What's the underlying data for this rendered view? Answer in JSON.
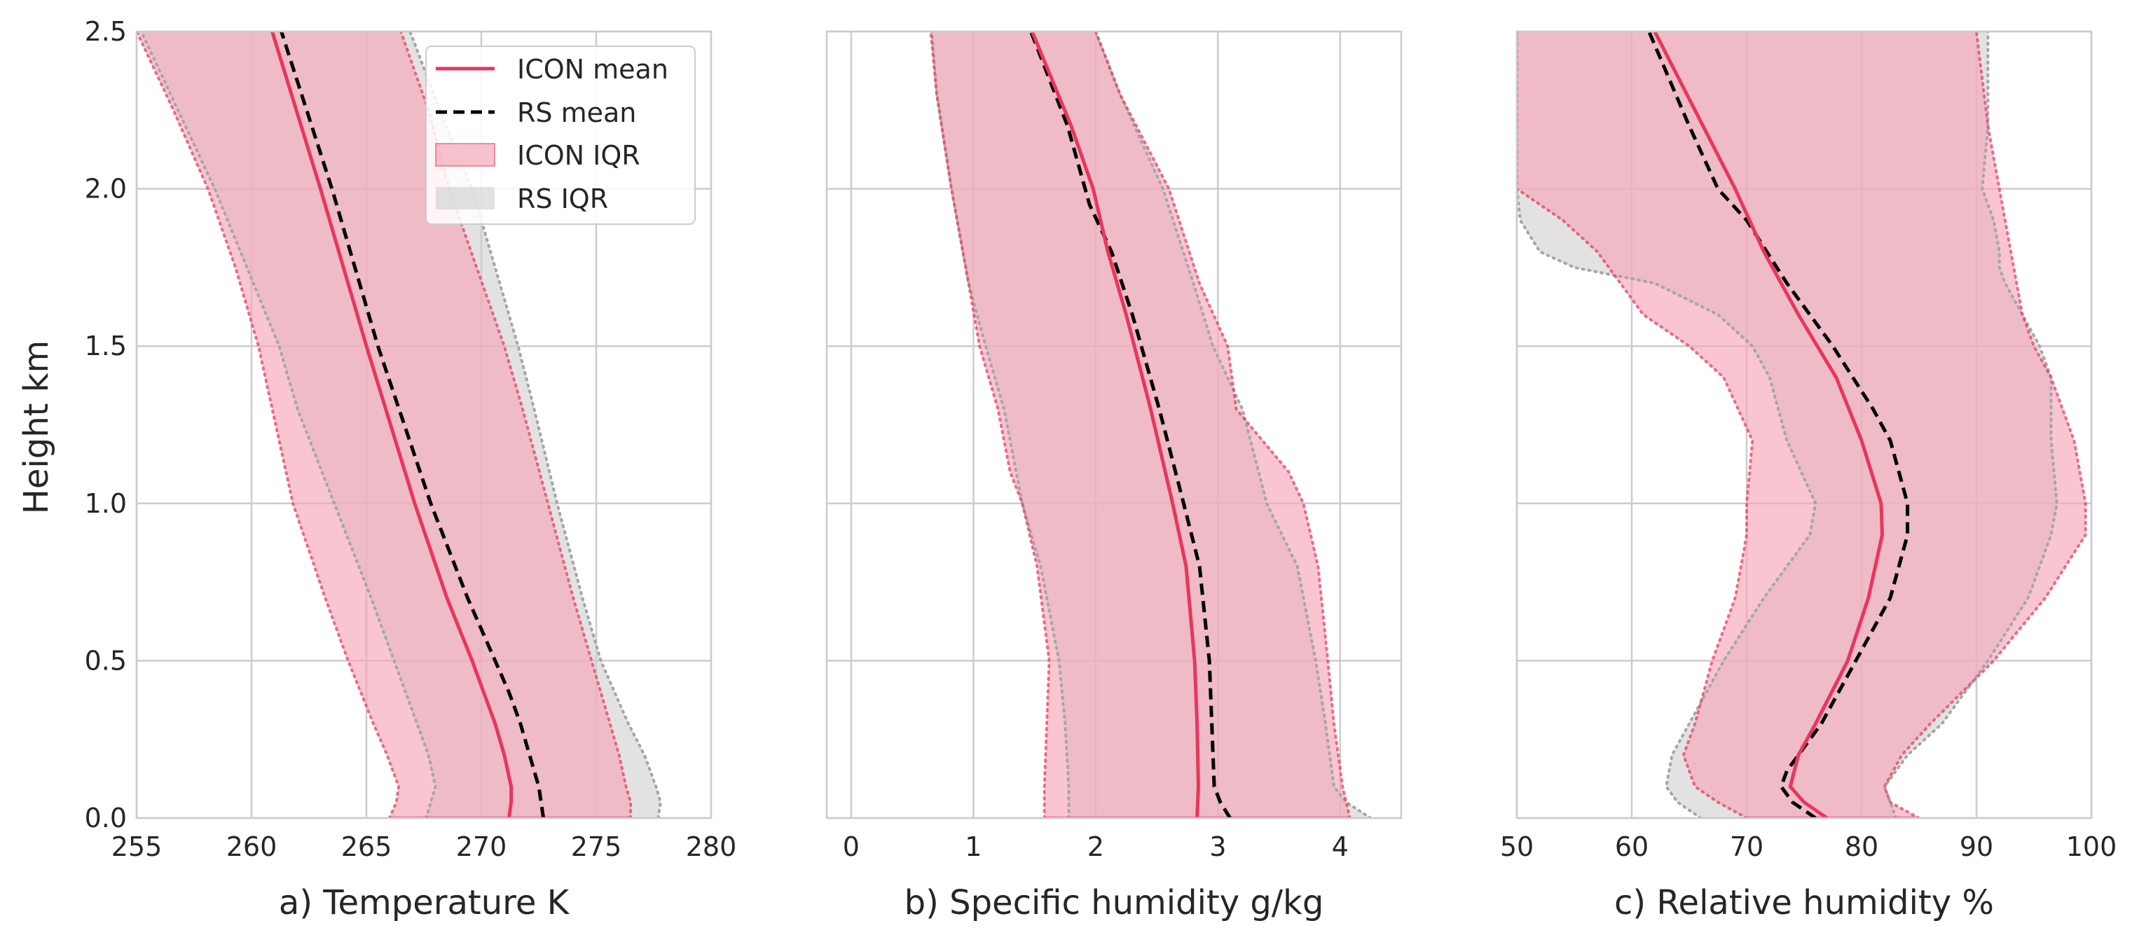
{
  "chart_data": [
    {
      "type": "line",
      "panel": "a",
      "xlabel": "a) Temperature K",
      "ylabel": "Height km",
      "xlim": [
        255,
        280
      ],
      "ylim": [
        0,
        2.5
      ],
      "xticks": [
        255,
        260,
        265,
        270,
        275,
        280
      ],
      "yticks": [
        0.0,
        0.5,
        1.0,
        1.5,
        2.0,
        2.5
      ],
      "xtick_labels": [
        "255",
        "260",
        "265",
        "270",
        "275",
        "280"
      ],
      "ytick_labels": [
        "0.0",
        "0.5",
        "1.0",
        "1.5",
        "2.0",
        "2.5"
      ],
      "grid": true,
      "legend": {
        "placement": "upper-right",
        "entries": [
          {
            "label": "ICON mean",
            "style": "line",
            "color": "#e8365d"
          },
          {
            "label": "RS mean",
            "style": "dashed",
            "color": "#000000"
          },
          {
            "label": "ICON IQR",
            "style": "patch",
            "color": "#f4a6b9"
          },
          {
            "label": "RS IQR",
            "style": "patch",
            "color": "#d3d3d3"
          }
        ]
      },
      "series": [
        {
          "name": "ICON mean",
          "y": [
            0.0,
            0.05,
            0.1,
            0.2,
            0.3,
            0.4,
            0.5,
            0.7,
            1.0,
            1.5,
            2.0,
            2.5
          ],
          "x": [
            271.2,
            271.3,
            271.3,
            271.0,
            270.6,
            270.1,
            269.6,
            268.5,
            267.1,
            265.0,
            263.0,
            260.9
          ]
        },
        {
          "name": "RS mean",
          "y": [
            0.0,
            0.05,
            0.1,
            0.2,
            0.3,
            0.4,
            0.5,
            0.7,
            1.0,
            1.5,
            2.0,
            2.5
          ],
          "x": [
            272.7,
            272.6,
            272.5,
            272.1,
            271.7,
            271.2,
            270.6,
            269.4,
            267.8,
            265.5,
            263.5,
            261.3
          ]
        },
        {
          "name": "ICON IQR",
          "y": [
            0.0,
            0.05,
            0.1,
            0.2,
            0.3,
            0.5,
            0.7,
            1.0,
            1.3,
            1.5,
            1.75,
            2.0,
            2.25,
            2.5
          ],
          "lower": [
            266.0,
            266.3,
            266.4,
            265.9,
            265.3,
            264.2,
            263.2,
            261.8,
            260.9,
            260.3,
            259.3,
            258.1,
            256.6,
            255.0
          ],
          "upper": [
            276.5,
            276.5,
            276.3,
            276.0,
            275.6,
            274.8,
            274.0,
            272.9,
            271.8,
            271.0,
            269.8,
            268.6,
            267.7,
            266.5
          ]
        },
        {
          "name": "RS IQR",
          "y": [
            0.0,
            0.05,
            0.1,
            0.2,
            0.3,
            0.5,
            0.7,
            1.0,
            1.3,
            1.5,
            1.75,
            2.0,
            2.25,
            2.5
          ],
          "lower": [
            267.6,
            267.8,
            268.0,
            267.7,
            267.2,
            266.2,
            265.2,
            263.6,
            262.0,
            261.2,
            259.8,
            258.4,
            256.8,
            255.2
          ],
          "upper": [
            277.7,
            277.8,
            277.6,
            277.1,
            276.4,
            275.2,
            274.4,
            273.3,
            272.3,
            271.6,
            270.6,
            269.6,
            268.2,
            266.9
          ]
        }
      ]
    },
    {
      "type": "line",
      "panel": "b",
      "xlabel": "b) Specific humidity g/kg",
      "ylabel": "",
      "xlim": [
        -0.2,
        4.5
      ],
      "ylim": [
        0,
        2.5
      ],
      "xticks": [
        0,
        1,
        2,
        3,
        4
      ],
      "yticks": [
        0.0,
        0.5,
        1.0,
        1.5,
        2.0,
        2.5
      ],
      "xtick_labels": [
        "0",
        "1",
        "2",
        "3",
        "4"
      ],
      "grid": true,
      "series": [
        {
          "name": "ICON mean",
          "y": [
            0.0,
            0.1,
            0.3,
            0.5,
            0.8,
            1.0,
            1.3,
            1.6,
            1.8,
            2.0,
            2.2,
            2.5
          ],
          "x": [
            2.83,
            2.84,
            2.83,
            2.81,
            2.74,
            2.63,
            2.45,
            2.25,
            2.1,
            1.98,
            1.8,
            1.48
          ]
        },
        {
          "name": "RS mean",
          "y": [
            0.0,
            0.05,
            0.1,
            0.2,
            0.3,
            0.5,
            0.8,
            1.0,
            1.3,
            1.6,
            1.8,
            1.95,
            2.2,
            2.5
          ],
          "x": [
            3.1,
            3.02,
            2.97,
            2.96,
            2.95,
            2.93,
            2.85,
            2.72,
            2.52,
            2.3,
            2.13,
            1.95,
            1.77,
            1.47
          ]
        },
        {
          "name": "ICON IQR",
          "y": [
            0.0,
            0.1,
            0.3,
            0.5,
            0.8,
            1.0,
            1.1,
            1.3,
            1.5,
            1.7,
            2.0,
            2.3,
            2.5
          ],
          "lower": [
            1.58,
            1.58,
            1.6,
            1.62,
            1.52,
            1.4,
            1.3,
            1.2,
            1.05,
            0.96,
            0.82,
            0.7,
            0.65
          ],
          "upper": [
            4.08,
            4.02,
            3.95,
            3.9,
            3.82,
            3.7,
            3.58,
            3.15,
            3.08,
            2.85,
            2.6,
            2.2,
            2.0
          ]
        },
        {
          "name": "RS IQR",
          "y": [
            0.0,
            0.05,
            0.1,
            0.3,
            0.5,
            0.8,
            1.0,
            1.3,
            1.5,
            1.7,
            2.0,
            2.3,
            2.5
          ],
          "lower": [
            1.78,
            1.78,
            1.78,
            1.75,
            1.7,
            1.55,
            1.4,
            1.25,
            1.1,
            0.96,
            0.82,
            0.7,
            0.66
          ],
          "upper": [
            4.25,
            4.05,
            3.95,
            3.88,
            3.8,
            3.65,
            3.4,
            3.2,
            2.96,
            2.8,
            2.55,
            2.2,
            2.0
          ]
        }
      ]
    },
    {
      "type": "line",
      "panel": "c",
      "xlabel": "c) Relative humidity %",
      "ylabel": "",
      "xlim": [
        50,
        100
      ],
      "ylim": [
        0,
        2.5
      ],
      "xticks": [
        50,
        60,
        70,
        80,
        90,
        100
      ],
      "yticks": [
        0.0,
        0.5,
        1.0,
        1.5,
        2.0,
        2.5
      ],
      "xtick_labels": [
        "50",
        "60",
        "70",
        "80",
        "90",
        "100"
      ],
      "grid": true,
      "series": [
        {
          "name": "ICON mean",
          "y": [
            0.0,
            0.05,
            0.1,
            0.2,
            0.3,
            0.5,
            0.7,
            0.9,
            1.0,
            1.2,
            1.4,
            1.6,
            1.8,
            2.0,
            2.2,
            2.5
          ],
          "x": [
            77.0,
            75.0,
            73.8,
            74.5,
            76.0,
            78.8,
            80.6,
            81.8,
            81.7,
            80.0,
            77.8,
            74.5,
            71.5,
            69.0,
            66.2,
            62.0
          ]
        },
        {
          "name": "RS mean",
          "y": [
            0.0,
            0.05,
            0.1,
            0.15,
            0.2,
            0.3,
            0.5,
            0.7,
            0.9,
            1.0,
            1.2,
            1.3,
            1.5,
            1.7,
            1.9,
            2.0,
            2.2,
            2.5
          ],
          "x": [
            76.0,
            74.0,
            73.0,
            73.5,
            74.5,
            76.5,
            79.5,
            82.5,
            84.0,
            84.0,
            82.5,
            81.0,
            77.5,
            73.5,
            70.0,
            67.5,
            65.0,
            61.5
          ]
        },
        {
          "name": "ICON IQR",
          "y": [
            0.0,
            0.05,
            0.1,
            0.2,
            0.3,
            0.5,
            0.7,
            0.9,
            1.0,
            1.2,
            1.4,
            1.5,
            1.6,
            1.8,
            1.9,
            2.0,
            2.2,
            2.5
          ],
          "lower": [
            70.0,
            67.5,
            65.5,
            64.5,
            65.5,
            67.0,
            69.0,
            70.0,
            70.0,
            70.5,
            68.0,
            65.0,
            61.0,
            57.0,
            54.0,
            50.0,
            50.0,
            50.0
          ],
          "upper": [
            85.0,
            82.5,
            82.0,
            83.5,
            86.0,
            91.5,
            96.0,
            99.5,
            99.5,
            98.5,
            96.5,
            95.0,
            94.0,
            93.0,
            92.5,
            92.0,
            91.0,
            90.0
          ]
        },
        {
          "name": "RS IQR",
          "y": [
            0.0,
            0.05,
            0.1,
            0.2,
            0.3,
            0.5,
            0.7,
            0.9,
            1.0,
            1.2,
            1.4,
            1.5,
            1.6,
            1.7,
            1.75,
            1.8,
            1.9,
            2.0,
            2.2,
            2.5
          ],
          "lower": [
            66.0,
            64.0,
            63.0,
            63.5,
            65.0,
            68.0,
            71.5,
            75.5,
            76.0,
            73.5,
            72.0,
            70.5,
            67.5,
            62.0,
            55.0,
            52.0,
            50.3,
            50.0,
            50.0,
            50.0
          ],
          "upper": [
            83.0,
            82.5,
            82.0,
            84.0,
            87.0,
            91.0,
            94.5,
            96.5,
            97.0,
            96.5,
            96.5,
            95.5,
            94.0,
            92.5,
            92.0,
            92.0,
            91.5,
            90.5,
            91.0,
            91.0
          ]
        }
      ]
    }
  ],
  "colors": {
    "icon_line": "#e8365d",
    "rs_line": "#000000",
    "icon_fill": "#f4a6b9",
    "rs_fill": "#cfcfcf",
    "grid": "#cccccc",
    "frame": "#cccccc"
  }
}
